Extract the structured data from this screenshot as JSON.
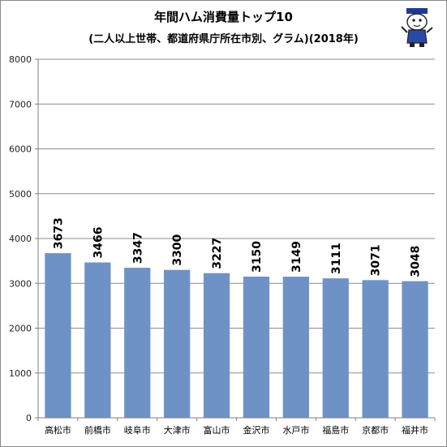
{
  "chart_data": {
    "type": "bar",
    "title": "年間ハム消費量トップ10",
    "subtitle": "(二人以上世帯、都道府県庁所在市別、グラム)(2018年)",
    "categories": [
      "高松市",
      "前橋市",
      "岐阜市",
      "大津市",
      "富山市",
      "金沢市",
      "水戸市",
      "福島市",
      "京都市",
      "福井市"
    ],
    "values": [
      3673,
      3466,
      3347,
      3300,
      3227,
      3150,
      3149,
      3111,
      3071,
      3048
    ],
    "value_labels": [
      "3673",
      "3466",
      "3347",
      "3300",
      "3227",
      "3150",
      "3149",
      "3111",
      "3071",
      "3048"
    ],
    "xlabel": "",
    "ylabel": "",
    "ylim": [
      0,
      8000
    ],
    "yticks": [
      0,
      1000,
      2000,
      3000,
      4000,
      5000,
      6000,
      7000,
      8000
    ],
    "ytick_labels": [
      "0",
      "1000",
      "2000",
      "3000",
      "4000",
      "5000",
      "6000",
      "7000",
      "8000"
    ],
    "grid": true,
    "legend": "none",
    "colors": {
      "bar": "#6f92c6",
      "grid": "#8c8c8c",
      "axis": "#808080"
    }
  },
  "mascot_icon": "mascot-character-icon"
}
